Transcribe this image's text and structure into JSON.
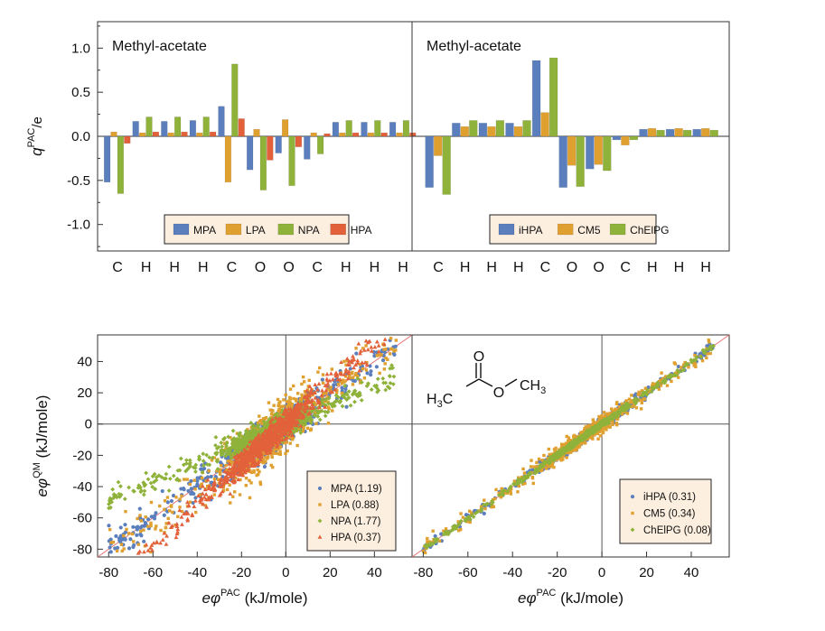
{
  "chart_data": [
    {
      "type": "bar",
      "title": "Methyl-acetate",
      "ylabel": "q",
      "ylabel_sup": "PAC",
      "ylabel_suffix": "/e",
      "ylim": [
        -1.3,
        1.3
      ],
      "yticks": [
        1.0,
        0.5,
        0.0,
        -0.5,
        -1.0
      ],
      "ytick_labels": [
        "1.0",
        "0.5",
        "0.0",
        "-0.5",
        "-1.0"
      ],
      "categories": [
        "C",
        "H",
        "H",
        "H",
        "C",
        "O",
        "O",
        "C",
        "H",
        "H",
        "H"
      ],
      "legend_position": "bottom-center",
      "series": [
        {
          "name": "MPA",
          "color": "#5b7fbd",
          "values": [
            -0.52,
            0.17,
            0.17,
            0.18,
            0.34,
            -0.38,
            -0.19,
            -0.26,
            0.16,
            0.16,
            0.16
          ]
        },
        {
          "name": "LPA",
          "color": "#e0a030",
          "values": [
            0.05,
            0.04,
            0.04,
            0.04,
            -0.52,
            0.08,
            0.19,
            0.04,
            0.04,
            0.04,
            0.04
          ]
        },
        {
          "name": "NPA",
          "color": "#8fb23a",
          "values": [
            -0.65,
            0.22,
            0.22,
            0.22,
            0.82,
            -0.61,
            -0.56,
            -0.2,
            0.18,
            0.18,
            0.18
          ]
        },
        {
          "name": "HPA",
          "color": "#e2613b",
          "values": [
            -0.08,
            0.05,
            0.05,
            0.05,
            0.2,
            -0.27,
            -0.12,
            0.03,
            0.04,
            0.04,
            0.04
          ]
        }
      ]
    },
    {
      "type": "bar",
      "title": "Methyl-acetate",
      "ylim": [
        -1.3,
        1.3
      ],
      "categories": [
        "C",
        "H",
        "H",
        "H",
        "C",
        "O",
        "O",
        "C",
        "H",
        "H",
        "H"
      ],
      "legend_position": "bottom-center",
      "series": [
        {
          "name": "iHPA",
          "color": "#5b7fbd",
          "values": [
            -0.58,
            0.15,
            0.15,
            0.15,
            0.86,
            -0.58,
            -0.37,
            -0.04,
            0.08,
            0.08,
            0.08
          ]
        },
        {
          "name": "CM5",
          "color": "#e0a030",
          "values": [
            -0.22,
            0.11,
            0.11,
            0.11,
            0.27,
            -0.33,
            -0.32,
            -0.1,
            0.09,
            0.09,
            0.09
          ]
        },
        {
          "name": "ChElPG",
          "color": "#8fb23a",
          "values": [
            -0.66,
            0.18,
            0.18,
            0.18,
            0.89,
            -0.57,
            -0.39,
            -0.04,
            0.07,
            0.07,
            0.07
          ]
        }
      ]
    },
    {
      "type": "scatter",
      "xlabel": "eφ",
      "xlabel_sup": "PAC",
      "xlabel_suffix": " (kJ/mole)",
      "ylabel": "eφ",
      "ylabel_sup": "QM",
      "ylabel_suffix": " (kJ/mole)",
      "xlim": [
        -85,
        57
      ],
      "ylim": [
        -85,
        57
      ],
      "xticks": [
        -80,
        -60,
        -40,
        -20,
        0,
        20,
        40
      ],
      "yticks": [
        40,
        20,
        0,
        -20,
        -40,
        -60,
        -80
      ],
      "tick_labels": [
        "-80",
        "-60",
        "-40",
        "-20",
        "0",
        "20",
        "40"
      ],
      "diagonal_color": "#e87474",
      "legend_position": "bottom-right",
      "series": [
        {
          "name": "MPA (1.19)",
          "marker": "circle",
          "color": "#5b7fbd",
          "slope": 1.0,
          "spread": 5.5
        },
        {
          "name": "LPA (0.88)",
          "marker": "square",
          "color": "#e0a030",
          "slope": 1.05,
          "spread": 8.0
        },
        {
          "name": "NPA (1.77)",
          "marker": "diamond",
          "color": "#8fb23a",
          "slope": 0.62,
          "spread": 3.5
        },
        {
          "name": "HPA (0.37)",
          "marker": "triangle",
          "color": "#e2613b",
          "slope": 1.3,
          "spread": 4.0
        }
      ]
    },
    {
      "type": "scatter",
      "xlabel": "eφ",
      "xlabel_sup": "PAC",
      "xlabel_suffix": " (kJ/mole)",
      "xlim": [
        -85,
        57
      ],
      "ylim": [
        -85,
        57
      ],
      "xticks": [
        -80,
        -60,
        -40,
        -20,
        0,
        20,
        40
      ],
      "tick_labels": [
        "-80",
        "-60",
        "-40",
        "-20",
        "0",
        "20",
        "40"
      ],
      "diagonal_color": "#e87474",
      "legend_position": "bottom-right",
      "molecule_labels": [
        "O",
        "H",
        "3",
        "C",
        "O",
        "CH",
        "3"
      ],
      "series": [
        {
          "name": "iHPA (0.31)",
          "marker": "circle",
          "color": "#5b7fbd",
          "slope": 1.0,
          "spread": 1.6
        },
        {
          "name": "CM5 (0.34)",
          "marker": "square",
          "color": "#e0a030",
          "slope": 1.0,
          "spread": 2.6
        },
        {
          "name": "ChElPG (0.08)",
          "marker": "diamond",
          "color": "#8fb23a",
          "slope": 1.0,
          "spread": 0.9
        }
      ]
    }
  ]
}
